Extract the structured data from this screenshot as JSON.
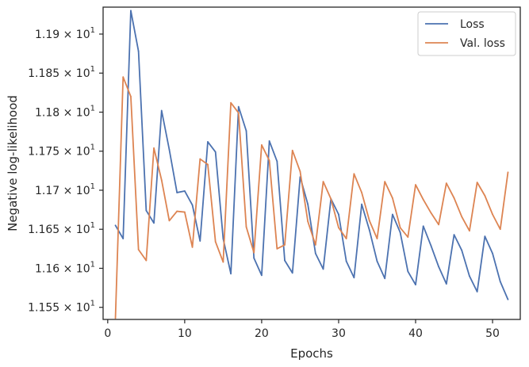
{
  "chart_data": {
    "type": "line",
    "xlabel": "Epochs",
    "ylabel": "Negative log-likelihood",
    "xlim": [
      -0.6,
      53.6
    ],
    "ylim": [
      11.5345,
      11.9345
    ],
    "x_ticks": [
      0,
      10,
      20,
      30,
      40,
      50
    ],
    "y_ticks": [
      {
        "value": 11.55,
        "mantissa": "1.155"
      },
      {
        "value": 11.6,
        "mantissa": "1.16"
      },
      {
        "value": 11.65,
        "mantissa": "1.165"
      },
      {
        "value": 11.7,
        "mantissa": "1.17"
      },
      {
        "value": 11.75,
        "mantissa": "1.175"
      },
      {
        "value": 11.8,
        "mantissa": "1.18"
      },
      {
        "value": 11.85,
        "mantissa": "1.185"
      },
      {
        "value": 11.9,
        "mantissa": "1.19"
      }
    ],
    "y_tick_suffix": "× 10",
    "y_tick_exponent": "1",
    "grid": false,
    "legend_position": "top-right",
    "x": [
      1,
      2,
      3,
      4,
      5,
      6,
      7,
      8,
      9,
      10,
      11,
      12,
      13,
      14,
      15,
      16,
      17,
      18,
      19,
      20,
      21,
      22,
      23,
      24,
      25,
      26,
      27,
      28,
      29,
      30,
      31,
      32,
      33,
      34,
      35,
      36,
      37,
      38,
      39,
      40,
      41,
      42,
      43,
      44,
      45,
      46,
      47,
      48,
      49,
      50,
      51,
      52
    ],
    "series": [
      {
        "name": "Loss",
        "color": "#4c72b0",
        "values": [
          11.655,
          11.638,
          11.93,
          11.878,
          11.674,
          11.658,
          11.802,
          11.752,
          11.697,
          11.699,
          11.681,
          11.635,
          11.762,
          11.749,
          11.638,
          11.593,
          11.807,
          11.776,
          11.613,
          11.591,
          11.763,
          11.737,
          11.61,
          11.594,
          11.717,
          11.682,
          11.619,
          11.599,
          11.689,
          11.669,
          11.609,
          11.588,
          11.682,
          11.649,
          11.609,
          11.587,
          11.669,
          11.646,
          11.596,
          11.579,
          11.654,
          11.629,
          11.602,
          11.58,
          11.643,
          11.623,
          11.59,
          11.57,
          11.641,
          11.619,
          11.583,
          11.56
        ]
      },
      {
        "name": "Val. loss",
        "color": "#dd8452",
        "values": [
          11.536,
          11.845,
          11.82,
          11.624,
          11.61,
          11.754,
          11.713,
          11.661,
          11.673,
          11.672,
          11.627,
          11.74,
          11.733,
          11.634,
          11.608,
          11.812,
          11.799,
          11.653,
          11.62,
          11.758,
          11.738,
          11.625,
          11.63,
          11.751,
          11.724,
          11.66,
          11.63,
          11.711,
          11.689,
          11.652,
          11.638,
          11.721,
          11.697,
          11.661,
          11.638,
          11.711,
          11.69,
          11.652,
          11.64,
          11.707,
          11.688,
          11.671,
          11.656,
          11.709,
          11.69,
          11.666,
          11.648,
          11.71,
          11.693,
          11.669,
          11.65,
          11.723
        ]
      }
    ]
  }
}
